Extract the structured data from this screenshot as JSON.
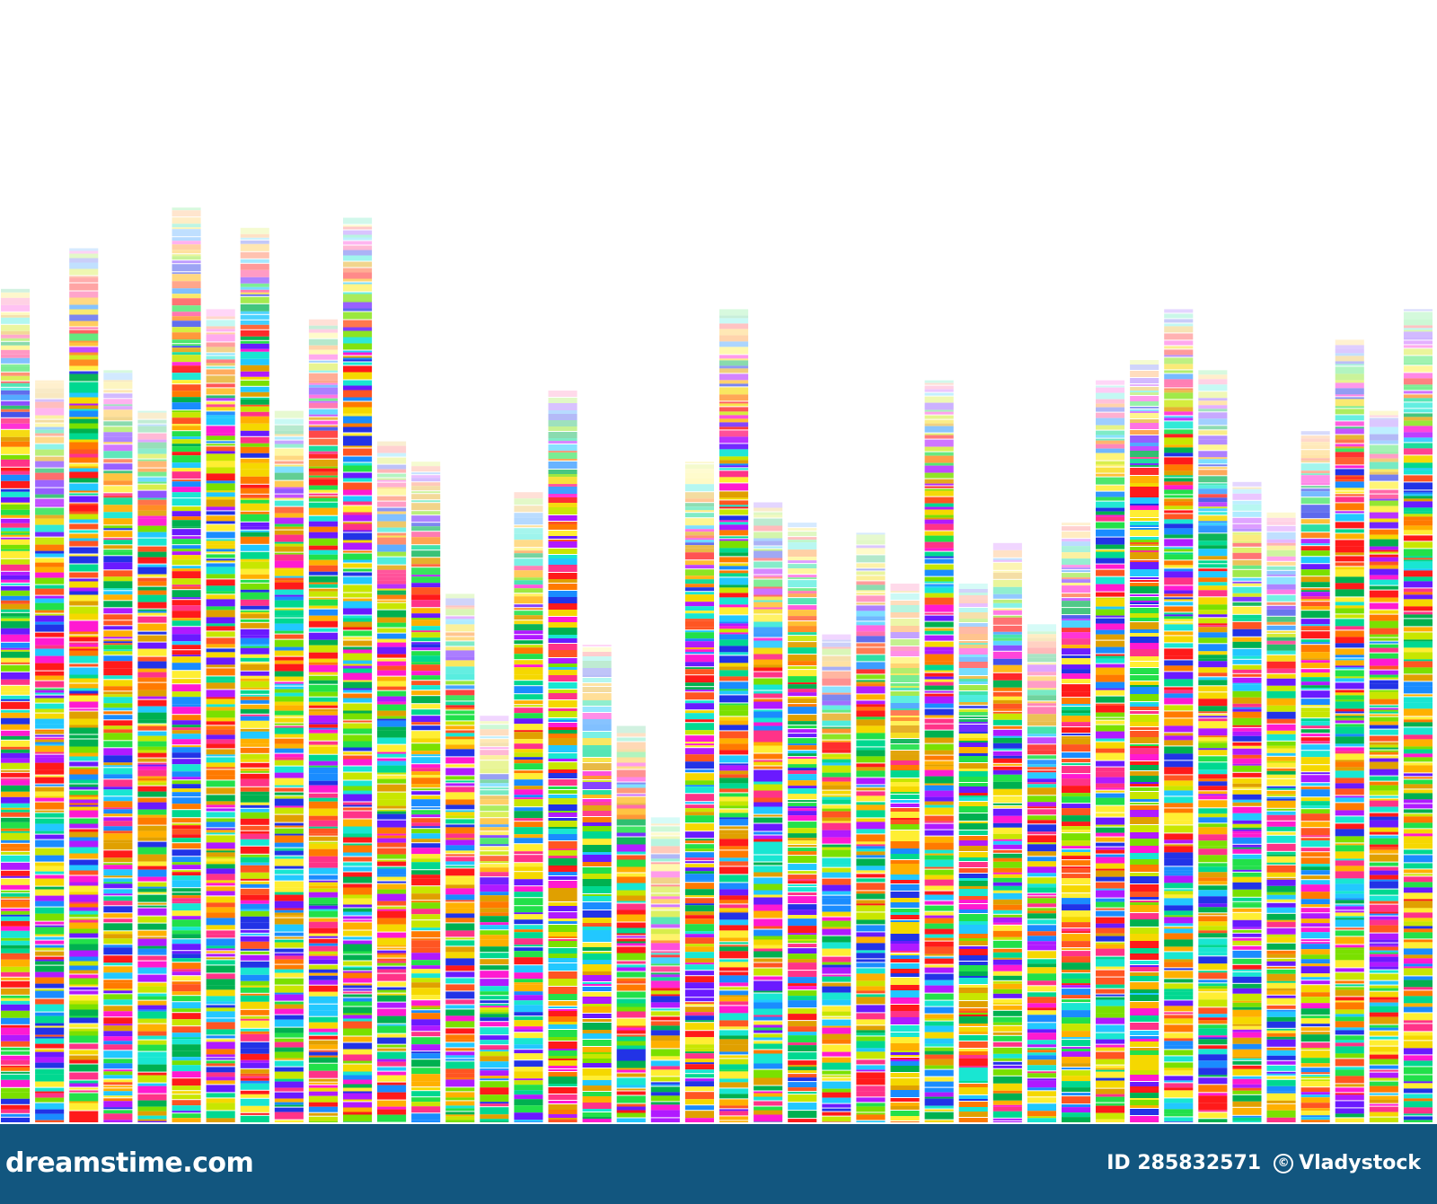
{
  "artwork": {
    "description_icon": "dna-sequencing-barcode-bars",
    "bar_count": 42,
    "levels": [
      0.82,
      0.73,
      0.86,
      0.74,
      0.7,
      0.9,
      0.8,
      0.88,
      0.7,
      0.79,
      0.89,
      0.67,
      0.65,
      0.52,
      0.4,
      0.62,
      0.72,
      0.47,
      0.39,
      0.3,
      0.65,
      0.8,
      0.61,
      0.59,
      0.48,
      0.58,
      0.53,
      0.73,
      0.53,
      0.57,
      0.49,
      0.59,
      0.73,
      0.75,
      0.8,
      0.74,
      0.63,
      0.6,
      0.68,
      0.77,
      0.7,
      0.8
    ],
    "palette": [
      "#ff1a1a",
      "#ff7a00",
      "#ffb000",
      "#f5d800",
      "#ffee33",
      "#c8e600",
      "#7ae000",
      "#22e04a",
      "#00d890",
      "#19e6d2",
      "#22c8ff",
      "#1a8cff",
      "#2233e6",
      "#6a1aff",
      "#b01aff",
      "#ff1ad1",
      "#ff3388",
      "#e0a000",
      "#ff5522",
      "#00b050"
    ]
  },
  "footer": {
    "brand_name": "dreamstime.com",
    "brand_icon": "dreamstime-swirl-logo",
    "image_id": "ID 285832571",
    "copyright_icon": "copyright-icon",
    "copyright_symbol": "©",
    "author": "Vladystock",
    "background_color": "#12567f"
  }
}
